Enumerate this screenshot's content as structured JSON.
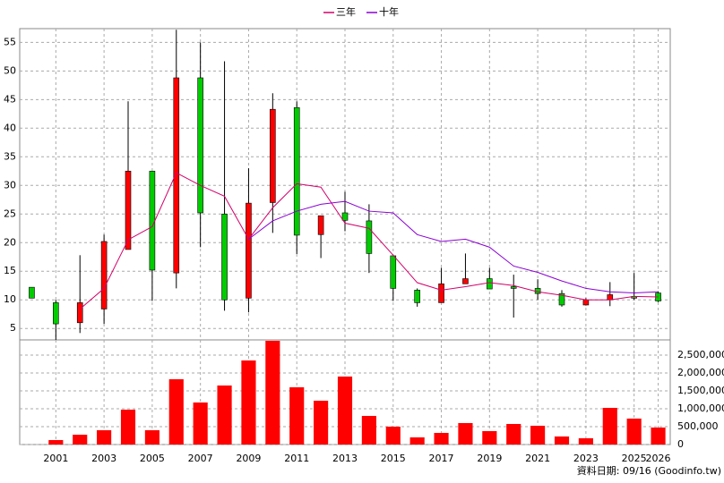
{
  "chart_data": [
    {
      "type": "candlestick",
      "open": [
        12.2,
        9.5,
        6,
        8.4,
        18.8,
        32.5,
        14.7,
        48.8,
        25,
        10.3,
        27,
        43.6,
        21.4,
        25.2,
        23.8,
        17.7,
        11.7,
        9.5,
        12.8,
        13.7,
        12.3,
        12,
        11.1,
        9.1,
        10,
        10.6,
        11.2
      ],
      "high": [
        12.2,
        10,
        17.8,
        21.4,
        44.7,
        32.5,
        57.2,
        55,
        51.7,
        33,
        46.1,
        44.7,
        24.7,
        28.9,
        26.7,
        17.7,
        12,
        15.6,
        18.1,
        15.6,
        14.4,
        13.6,
        11.7,
        10.3,
        13.1,
        14.7,
        11.5
      ],
      "low": [
        10.3,
        3,
        4.2,
        5.8,
        18.8,
        9.8,
        12,
        19.2,
        8.1,
        7.8,
        21.7,
        18,
        17.3,
        22,
        14.7,
        9.8,
        8.8,
        9.5,
        12.8,
        11.9,
        6.9,
        10,
        8.8,
        9,
        8.9,
        10,
        9.6
      ],
      "close": [
        10.3,
        5.8,
        9.5,
        20.2,
        32.5,
        15.2,
        48.8,
        25.2,
        10,
        26.9,
        43.3,
        21.3,
        24.7,
        23.9,
        18.1,
        12,
        9.5,
        12.8,
        13.7,
        11.9,
        12,
        11.1,
        9.1,
        10,
        10.9,
        10.3,
        9.8
      ],
      "up_color": "#ff0000",
      "down_color": "#00cc00",
      "series": [
        {
          "name": "三年",
          "color": "#d4006a",
          "values": [
            null,
            null,
            8.4,
            12,
            20.5,
            22.8,
            32.2,
            30,
            28.1,
            20.6,
            26.1,
            30.3,
            29.7,
            23.4,
            22.5,
            17.8,
            13,
            11.7,
            12.3,
            13,
            12.5,
            11.4,
            10.8,
            10,
            10,
            10.6,
            10.5
          ]
        },
        {
          "name": "十年",
          "color": "#8a00d4",
          "values": [
            null,
            null,
            null,
            null,
            null,
            null,
            null,
            null,
            null,
            20.6,
            23.8,
            25.5,
            26.7,
            27.2,
            25.5,
            25.2,
            21.4,
            20.2,
            20.6,
            19.2,
            15.9,
            14.8,
            13.3,
            12,
            11.4,
            11.2,
            11.4
          ]
        }
      ],
      "ylim": [
        3,
        57.4
      ],
      "yticks": [
        5,
        10,
        15,
        20,
        25,
        30,
        35,
        40,
        45,
        50,
        55
      ],
      "grid": true
    },
    {
      "type": "bar",
      "categories": [
        null,
        "2001",
        null,
        "2003",
        null,
        "2005",
        null,
        "2007",
        null,
        "2009",
        null,
        "2011",
        null,
        "2013",
        null,
        "2015",
        null,
        "2017",
        null,
        "2019",
        null,
        "2021",
        null,
        "2023",
        null,
        "2025",
        "2026"
      ],
      "values": [
        null,
        125000,
        275000,
        400000,
        975000,
        400000,
        1825000,
        1175000,
        1650000,
        2350000,
        2900000,
        1600000,
        1225000,
        1900000,
        800000,
        500000,
        200000,
        325000,
        600000,
        375000,
        575000,
        525000,
        225000,
        175000,
        1025000,
        725000,
        475000
      ],
      "color": "#ff0000",
      "ylim": [
        0,
        2925000
      ],
      "yticks": [
        0,
        {
          "value": 500000,
          "label": "500,000"
        },
        {
          "value": 1000000,
          "label": "1,000,000"
        },
        {
          "value": 1500000,
          "label": "1,500,000"
        },
        {
          "value": 2000000,
          "label": "2,000,000"
        },
        {
          "value": 2500000,
          "label": "2,500,000"
        }
      ],
      "grid": true
    }
  ],
  "footer": "資料日期: 09/16 (Goodinfo.tw)"
}
